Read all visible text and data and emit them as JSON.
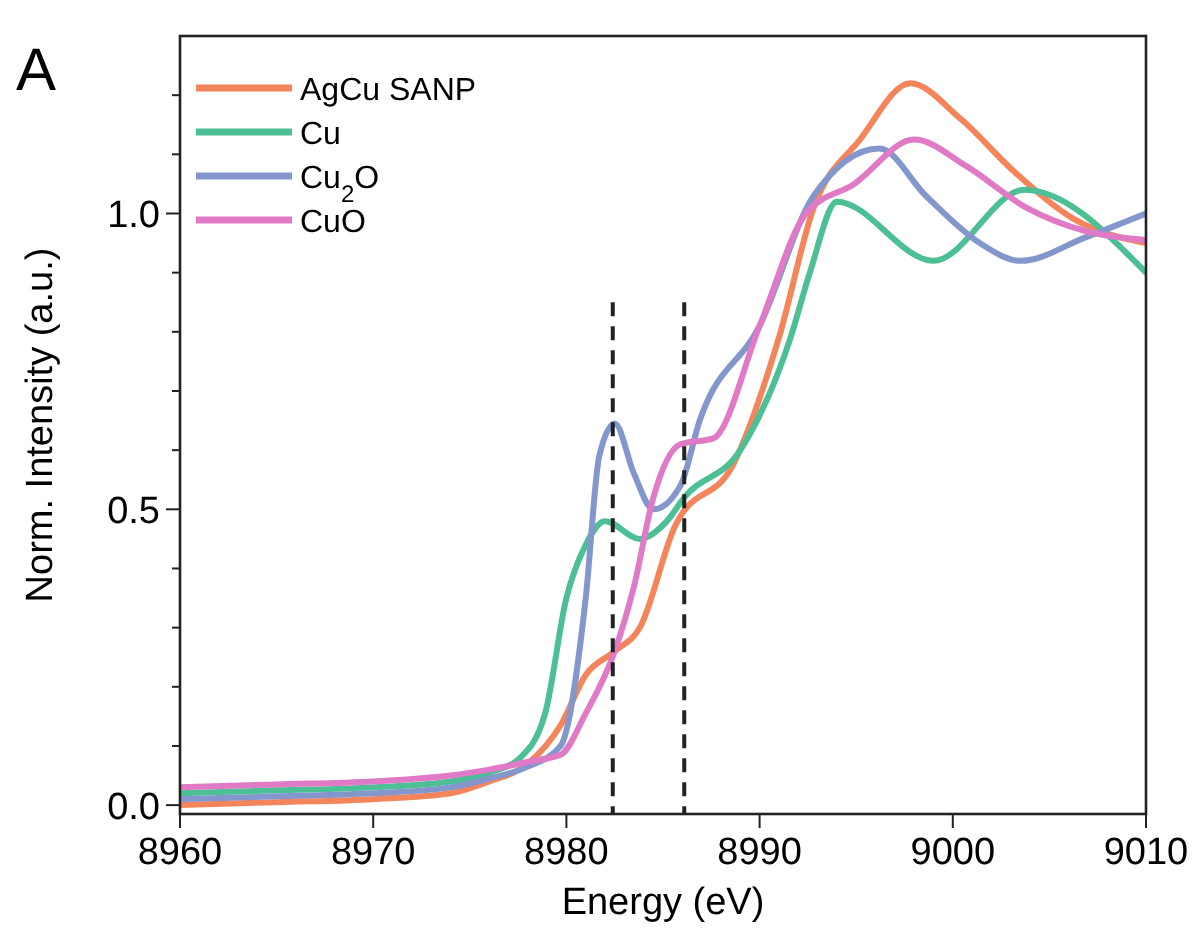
{
  "chart_data": {
    "type": "line",
    "title": "A",
    "xlabel": "Energy (eV)",
    "ylabel": "Norm. Intensity (a.u.)",
    "xlim": [
      8960,
      9010
    ],
    "ylim": [
      -0.015,
      1.3
    ],
    "xticks": [
      8960,
      8970,
      8980,
      8990,
      9000,
      9010
    ],
    "yticks": [
      {
        "value": 0,
        "label": "0.0"
      },
      {
        "value": 0.1,
        "label": null
      },
      {
        "value": 0.2,
        "label": null
      },
      {
        "value": 0.3,
        "label": null
      },
      {
        "value": 0.4,
        "label": null
      },
      {
        "value": 0.5,
        "label": "0.5"
      },
      {
        "value": 0.6,
        "label": null
      },
      {
        "value": 0.7,
        "label": null
      },
      {
        "value": 0.8,
        "label": null
      },
      {
        "value": 0.9,
        "label": null
      },
      {
        "value": 1,
        "label": "1.0"
      },
      {
        "value": 1.1,
        "label": null
      },
      {
        "value": 1.2,
        "label": null
      }
    ],
    "legend": "top left",
    "grid": false,
    "marker": "none",
    "line_style": "solid",
    "ref_lines": [
      {
        "axis": "x",
        "value": 8982.4,
        "color": "#222222",
        "line_style": "dashed"
      },
      {
        "axis": "x",
        "value": 8986.1,
        "color": "#222222",
        "line_style": "dashed"
      }
    ],
    "series": [
      {
        "name": "AgCu SANP",
        "color": "#f4845a",
        "x": [
          8960,
          8965,
          8970,
          8974,
          8976,
          8978,
          8979.7,
          8981,
          8982.5,
          8983.8,
          8985.6,
          8988.7,
          8991,
          8992.8,
          8995.2,
          8997.8,
          9000.4,
          9003.2,
          9006.3,
          9010
        ],
        "values": [
          0,
          0.005,
          0.01,
          0.02,
          0.04,
          0.07,
          0.135,
          0.22,
          0.26,
          0.3,
          0.47,
          0.58,
          0.79,
          1.01,
          1.125,
          1.22,
          1.16,
          1.07,
          0.99,
          0.95
        ]
      },
      {
        "name": "Cu",
        "color": "#4dbf94",
        "x": [
          8960,
          8965,
          8970,
          8974,
          8976,
          8977.6,
          8978.9,
          8980,
          8981,
          8982,
          8983.8,
          8985.2,
          8986.1,
          8989,
          8991.6,
          8992.6,
          8994,
          8999,
          9003.7,
          9010
        ],
        "values": [
          0.02,
          0.025,
          0.03,
          0.04,
          0.055,
          0.08,
          0.155,
          0.35,
          0.44,
          0.48,
          0.45,
          0.48,
          0.52,
          0.6,
          0.79,
          0.9,
          1.02,
          0.92,
          1.04,
          0.9
        ]
      },
      {
        "name": "Cu$_{2}$O",
        "color": "#8497cc",
        "x": [
          8960,
          8965,
          8970,
          8974,
          8976,
          8978,
          8979.7,
          8981,
          8981.7,
          8982.5,
          8983.5,
          8984.5,
          8985.9,
          8986.9,
          8990,
          8992.8,
          8996.2,
          8998.6,
          9001.4,
          9003.5,
          9006.9,
          9010
        ],
        "values": [
          0.01,
          0.015,
          0.02,
          0.03,
          0.045,
          0.065,
          0.1,
          0.35,
          0.59,
          0.645,
          0.56,
          0.5,
          0.54,
          0.65,
          0.81,
          1.03,
          1.11,
          1.03,
          0.95,
          0.92,
          0.96,
          1
        ]
      },
      {
        "name": "CuO",
        "color": "#e07ac6",
        "x": [
          8960,
          8965,
          8970,
          8974,
          8976,
          8978.3,
          8979.7,
          8981,
          8982.5,
          8983.5,
          8984.5,
          8985.9,
          8987.6,
          8990,
          8992.4,
          8994.9,
          8998,
          9000.7,
          9003.8,
          9006.9,
          9010
        ],
        "values": [
          0.03,
          0.035,
          0.04,
          0.05,
          0.06,
          0.075,
          0.085,
          0.155,
          0.26,
          0.37,
          0.52,
          0.61,
          0.62,
          0.81,
          1,
          1.05,
          1.125,
          1.08,
          1.01,
          0.97,
          0.955
        ]
      }
    ]
  }
}
